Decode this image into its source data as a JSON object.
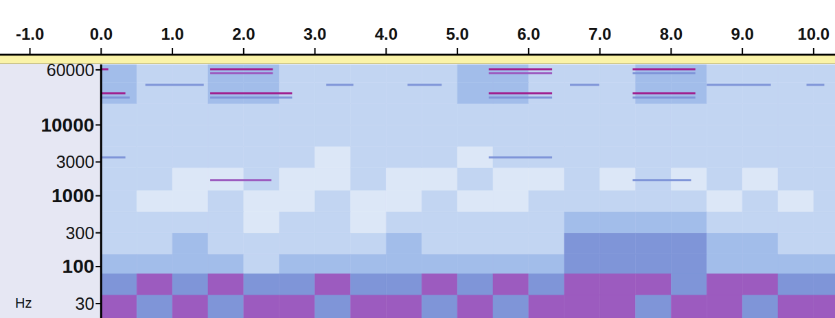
{
  "chart_data": {
    "type": "heatmap",
    "y_label": "Hz",
    "log": "y",
    "grid": false,
    "xlim": [
      -1.42,
      10.3
    ],
    "xticks": [
      {
        "value": -1,
        "label": "-1.0"
      },
      {
        "value": 0,
        "label": "0.0"
      },
      {
        "value": 1,
        "label": "1.0"
      },
      {
        "value": 2,
        "label": "2.0"
      },
      {
        "value": 3,
        "label": "3.0"
      },
      {
        "value": 4,
        "label": "4.0"
      },
      {
        "value": 5,
        "label": "5.0"
      },
      {
        "value": 6,
        "label": "6.0"
      },
      {
        "value": 7,
        "label": "7.0"
      },
      {
        "value": 8,
        "label": "8.0"
      },
      {
        "value": 9,
        "label": "9.0"
      },
      {
        "value": 10,
        "label": "10.0"
      }
    ],
    "ylim": [
      18.8,
      71600
    ],
    "yticks": [
      30,
      100,
      300,
      1000,
      3000,
      10000,
      60000
    ],
    "time_edges": [
      0,
      0.5,
      1,
      1.5,
      2,
      2.5,
      3,
      3.5,
      4,
      4.5,
      5,
      5.5,
      6,
      6.5,
      7,
      7.5,
      8,
      8.5,
      9,
      9.5,
      10,
      10.5
    ],
    "freq_edges": [
      18.8,
      40,
      80,
      150,
      300,
      600,
      1200,
      2500,
      5000,
      10000,
      20000,
      40000,
      71600
    ],
    "cells": [
      [
        4,
        3,
        4,
        3,
        4,
        4,
        3,
        4,
        4,
        3,
        4,
        3,
        4,
        4,
        4,
        3,
        4,
        4,
        3,
        4,
        4
      ],
      [
        3,
        4,
        3,
        4,
        3,
        3,
        4,
        3,
        3,
        4,
        3,
        4,
        3,
        4,
        4,
        4,
        3,
        4,
        4,
        3,
        3
      ],
      [
        2,
        2,
        2,
        2,
        1,
        2,
        2,
        2,
        2,
        2,
        2,
        2,
        2,
        3,
        3,
        3,
        3,
        2,
        2,
        2,
        2
      ],
      [
        1,
        1,
        2,
        1,
        1,
        1,
        1,
        1,
        2,
        1,
        1,
        1,
        1,
        3,
        3,
        3,
        3,
        2,
        2,
        1,
        1
      ],
      [
        1,
        1,
        1,
        1,
        0,
        1,
        1,
        0,
        1,
        1,
        1,
        1,
        1,
        2,
        2,
        2,
        2,
        1,
        1,
        1,
        1
      ],
      [
        1,
        0,
        0,
        1,
        0,
        0,
        1,
        0,
        0,
        1,
        0,
        0,
        1,
        1,
        1,
        1,
        1,
        0,
        1,
        0,
        1
      ],
      [
        1,
        1,
        0,
        0,
        1,
        0,
        0,
        1,
        0,
        0,
        1,
        0,
        0,
        1,
        0,
        1,
        0,
        1,
        0,
        1,
        1
      ],
      [
        1,
        1,
        1,
        1,
        1,
        1,
        0,
        1,
        1,
        1,
        0,
        1,
        1,
        1,
        1,
        1,
        1,
        1,
        1,
        1,
        1
      ],
      [
        1,
        1,
        1,
        1,
        1,
        1,
        1,
        1,
        1,
        1,
        1,
        1,
        1,
        1,
        1,
        1,
        1,
        1,
        1,
        1,
        1
      ],
      [
        1,
        1,
        1,
        1,
        1,
        1,
        1,
        1,
        1,
        1,
        1,
        1,
        1,
        1,
        1,
        1,
        1,
        1,
        1,
        1,
        1
      ],
      [
        2,
        1,
        1,
        2,
        2,
        1,
        1,
        1,
        1,
        1,
        2,
        2,
        1,
        1,
        1,
        2,
        2,
        1,
        1,
        1,
        1
      ],
      [
        2,
        1,
        1,
        2,
        2,
        1,
        1,
        1,
        1,
        1,
        2,
        2,
        1,
        1,
        1,
        2,
        2,
        1,
        1,
        1,
        1
      ]
    ],
    "tones": [
      {
        "freq": 61400,
        "start": 0,
        "end": 0.1,
        "level": 5
      },
      {
        "freq": 61400,
        "start": 1.53,
        "end": 2.41,
        "level": 5
      },
      {
        "freq": 61400,
        "start": 5.44,
        "end": 6.33,
        "level": 5
      },
      {
        "freq": 61400,
        "start": 7.46,
        "end": 8.34,
        "level": 5
      },
      {
        "freq": 54000,
        "start": 1.53,
        "end": 2.41,
        "level": 4
      },
      {
        "freq": 54000,
        "start": 5.44,
        "end": 6.33,
        "level": 4
      },
      {
        "freq": 54000,
        "start": 7.46,
        "end": 8.34,
        "level": 3
      },
      {
        "freq": 37000,
        "start": 0.62,
        "end": 1.44,
        "level": 3
      },
      {
        "freq": 37000,
        "start": 3.16,
        "end": 3.54,
        "level": 3
      },
      {
        "freq": 37000,
        "start": 4.3,
        "end": 4.78,
        "level": 3
      },
      {
        "freq": 37000,
        "start": 6.58,
        "end": 6.99,
        "level": 3
      },
      {
        "freq": 37000,
        "start": 8.5,
        "end": 9.4,
        "level": 3
      },
      {
        "freq": 37000,
        "start": 9.9,
        "end": 10.15,
        "level": 3
      },
      {
        "freq": 28100,
        "start": 0,
        "end": 0.34,
        "level": 5
      },
      {
        "freq": 28100,
        "start": 1.53,
        "end": 2.68,
        "level": 5
      },
      {
        "freq": 28100,
        "start": 5.44,
        "end": 6.33,
        "level": 5
      },
      {
        "freq": 28100,
        "start": 7.46,
        "end": 8.34,
        "level": 5
      },
      {
        "freq": 24500,
        "start": 0,
        "end": 0.4,
        "level": 3
      },
      {
        "freq": 24500,
        "start": 1.53,
        "end": 2.68,
        "level": 3
      },
      {
        "freq": 24500,
        "start": 5.44,
        "end": 6.33,
        "level": 3
      },
      {
        "freq": 24500,
        "start": 7.46,
        "end": 8.34,
        "level": 3
      },
      {
        "freq": 3480,
        "start": 0,
        "end": 0.34,
        "level": 3
      },
      {
        "freq": 3480,
        "start": 5.44,
        "end": 6.33,
        "level": 3
      },
      {
        "freq": 1670,
        "start": 1.53,
        "end": 2.39,
        "level": 4
      },
      {
        "freq": 1670,
        "start": 7.46,
        "end": 8.28,
        "level": 3
      }
    ]
  }
}
